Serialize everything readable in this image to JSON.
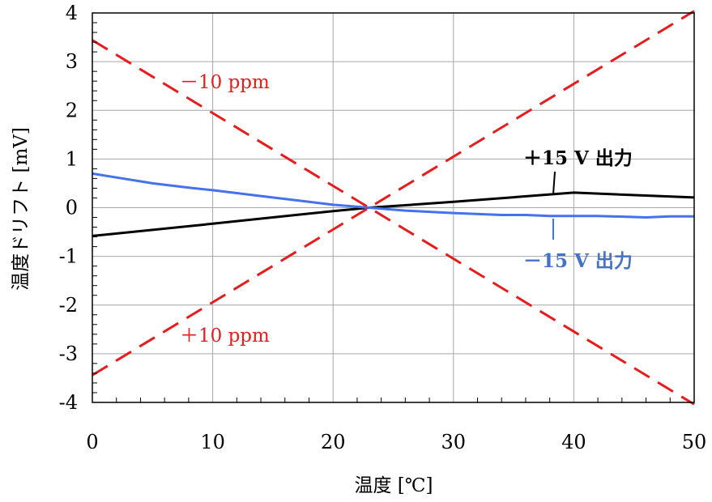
{
  "chart_data": {
    "type": "line",
    "title": "",
    "xlabel": "温度 [℃]",
    "ylabel": "温度ドリフト [mV]",
    "xlim": [
      0,
      50
    ],
    "ylim": [
      -4,
      4
    ],
    "xticks": [
      "0",
      "10",
      "20",
      "30",
      "40",
      "50"
    ],
    "yticks": [
      "4",
      "3",
      "2",
      "1",
      "0",
      "-1",
      "-2",
      "-3",
      "-4"
    ],
    "grid": true,
    "series": [
      {
        "name": "＋15 V 出力",
        "color": "#000000",
        "style": "solid",
        "x": [
          0,
          10,
          20,
          23,
          30,
          40,
          50
        ],
        "y": [
          -0.58,
          -0.33,
          -0.07,
          0.0,
          0.12,
          0.31,
          0.21
        ]
      },
      {
        "name": "－15 V 出力",
        "color": "#4472ee",
        "style": "solid",
        "x": [
          0,
          2,
          5,
          8,
          10,
          14,
          18,
          20,
          23,
          26,
          30,
          34,
          36,
          38,
          40,
          42,
          46,
          48,
          50
        ],
        "y": [
          0.7,
          0.62,
          0.5,
          0.41,
          0.36,
          0.24,
          0.12,
          0.06,
          0.0,
          -0.06,
          -0.11,
          -0.15,
          -0.15,
          -0.17,
          -0.17,
          -0.17,
          -0.2,
          -0.18,
          -0.18
        ]
      },
      {
        "name": "－10 ppm",
        "color": "#e81c1c",
        "style": "dashed",
        "x": [
          0,
          50
        ],
        "y": [
          3.44,
          -4.04
        ]
      },
      {
        "name": "＋10 ppm",
        "color": "#e81c1c",
        "style": "dashed",
        "x": [
          0,
          50
        ],
        "y": [
          -3.44,
          4.04
        ]
      }
    ],
    "annotations": {
      "pos15": "＋15 V 出力",
      "neg15": "－15 V 出力",
      "minus10": "－10 ppm",
      "plus10": "＋10 ppm"
    }
  }
}
